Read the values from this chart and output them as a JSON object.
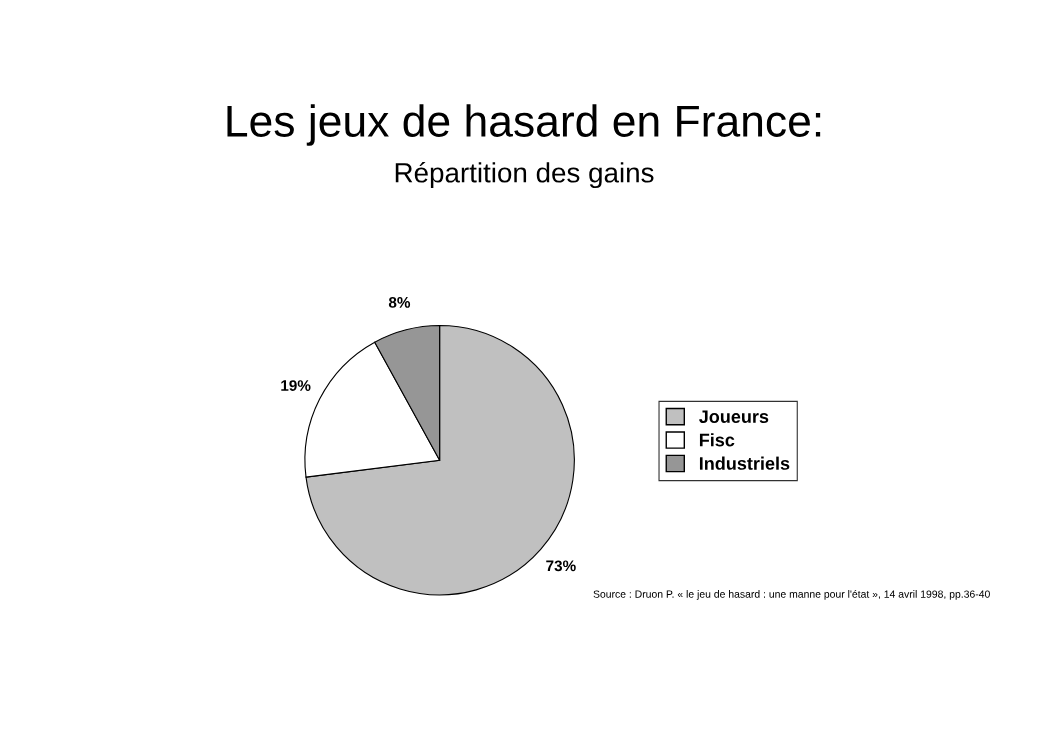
{
  "chart_data": {
    "type": "pie",
    "title": "Les jeux de hasard en France:",
    "subtitle": "Répartition des gains",
    "categories": [
      "Joueurs",
      "Fisc",
      "Industriels"
    ],
    "values": [
      73,
      19,
      8
    ],
    "colors": [
      "#c0c0c0",
      "#ffffff",
      "#969696"
    ],
    "value_labels": [
      "73%",
      "19%",
      "8%"
    ],
    "legend": "right",
    "annotations": [
      "Source : Druon P. « le jeu de hasard : une manne pour l'état », 14 avril 1998, pp.36-40"
    ]
  }
}
